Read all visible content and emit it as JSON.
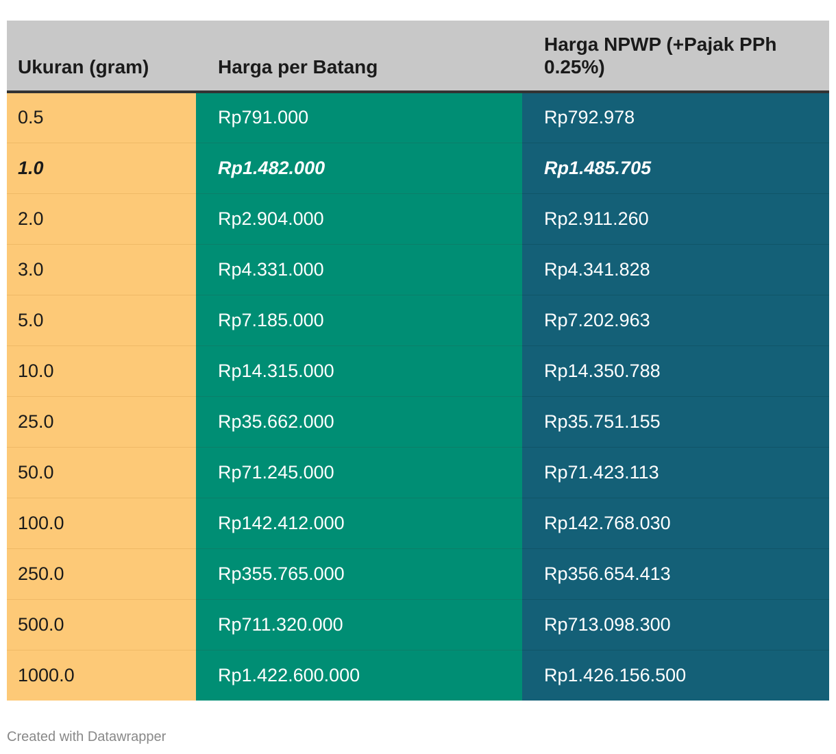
{
  "chart_data": {
    "type": "table",
    "columns": [
      "Ukuran (gram)",
      "Harga per Batang",
      "Harga NPWP (+Pajak PPh 0.25%)"
    ],
    "rows": [
      {
        "size": "0.5",
        "price": "Rp791.000",
        "npwp": "Rp792.978",
        "emphasis": false
      },
      {
        "size": "1.0",
        "price": "Rp1.482.000",
        "npwp": "Rp1.485.705",
        "emphasis": true
      },
      {
        "size": "2.0",
        "price": "Rp2.904.000",
        "npwp": "Rp2.911.260",
        "emphasis": false
      },
      {
        "size": "3.0",
        "price": "Rp4.331.000",
        "npwp": "Rp4.341.828",
        "emphasis": false
      },
      {
        "size": "5.0",
        "price": "Rp7.185.000",
        "npwp": "Rp7.202.963",
        "emphasis": false
      },
      {
        "size": "10.0",
        "price": "Rp14.315.000",
        "npwp": "Rp14.350.788",
        "emphasis": false
      },
      {
        "size": "25.0",
        "price": "Rp35.662.000",
        "npwp": "Rp35.751.155",
        "emphasis": false
      },
      {
        "size": "50.0",
        "price": "Rp71.245.000",
        "npwp": "Rp71.423.113",
        "emphasis": false
      },
      {
        "size": "100.0",
        "price": "Rp142.412.000",
        "npwp": "Rp142.768.030",
        "emphasis": false
      },
      {
        "size": "250.0",
        "price": "Rp355.765.000",
        "npwp": "Rp356.654.413",
        "emphasis": false
      },
      {
        "size": "500.0",
        "price": "Rp711.320.000",
        "npwp": "Rp713.098.300",
        "emphasis": false
      },
      {
        "size": "1000.0",
        "price": "Rp1.422.600.000",
        "npwp": "Rp1.426.156.500",
        "emphasis": false
      }
    ],
    "colors": {
      "header": "#c8c8c8",
      "size_column": "#fdc977",
      "price_column": "#008e74",
      "npwp_column": "#146077"
    }
  },
  "footer": {
    "credit": "Created with Datawrapper"
  }
}
